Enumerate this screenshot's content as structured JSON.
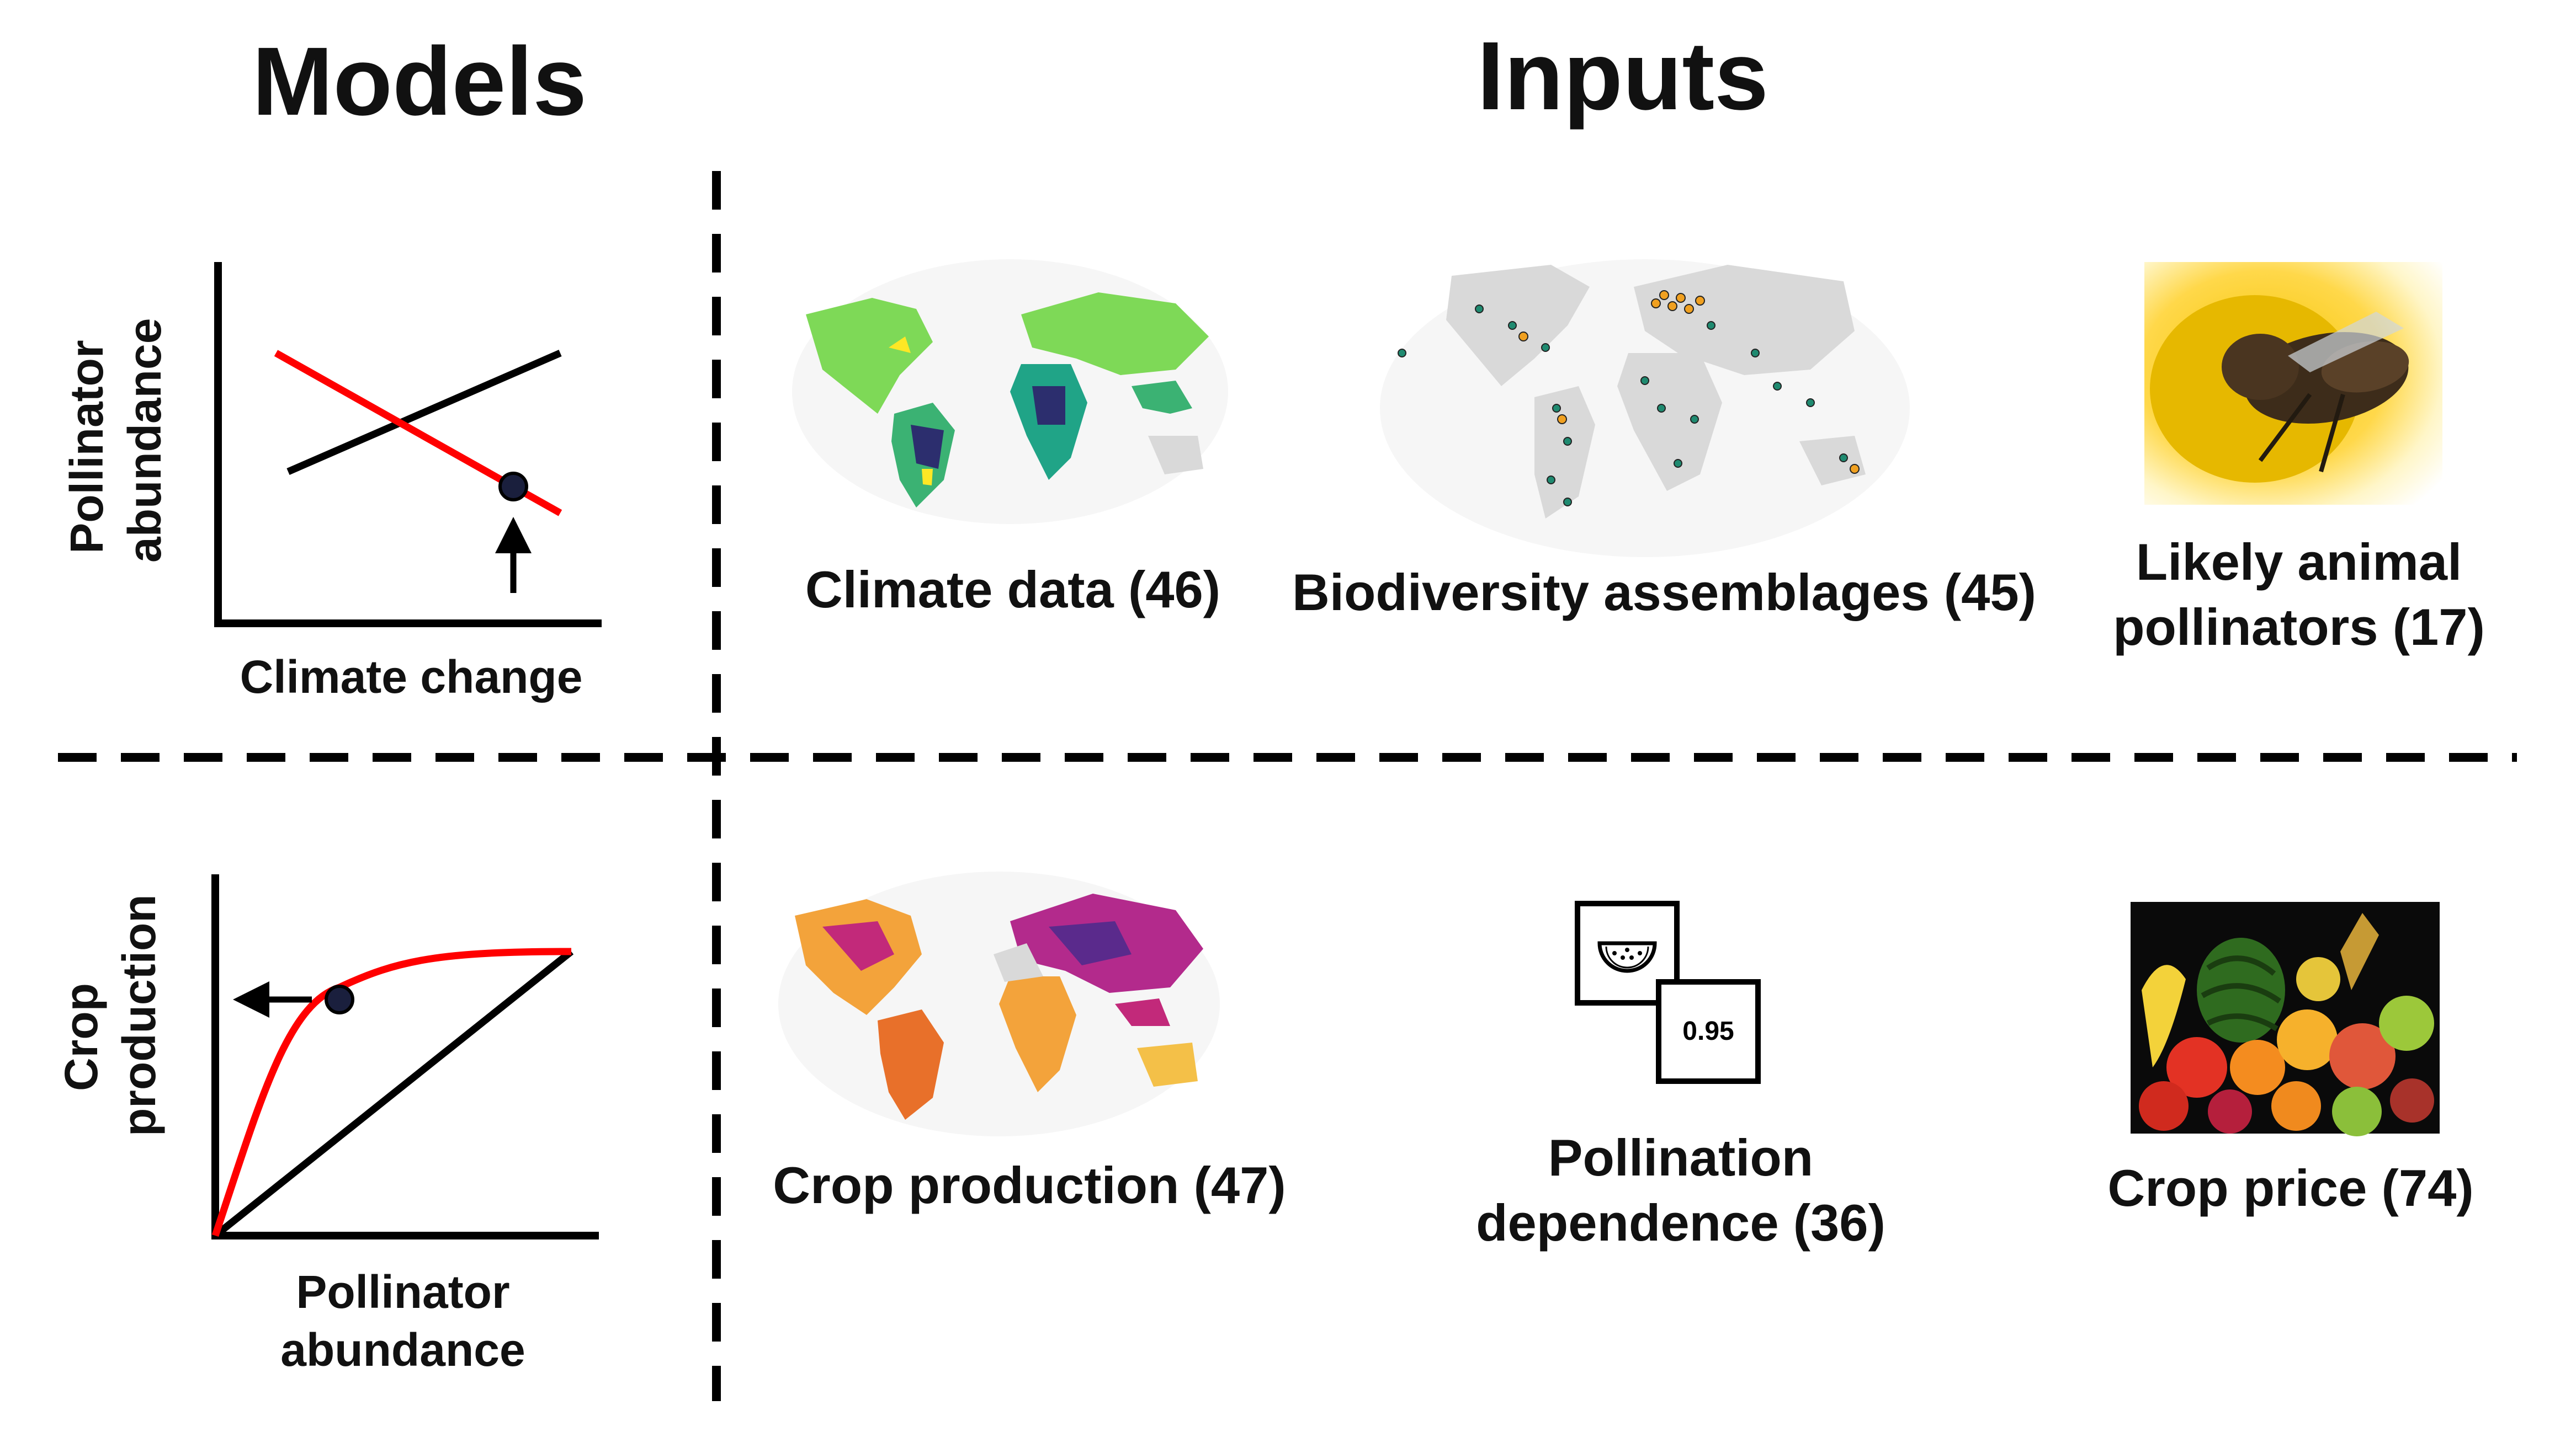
{
  "headings": {
    "models": "Models",
    "inputs": "Inputs"
  },
  "model_climate": {
    "y_label": "Pollinator abundance",
    "x_label": "Climate change"
  },
  "model_crop": {
    "y_label": "Crop production",
    "x_label": "Pollinator abundance"
  },
  "inputs_top": [
    {
      "label": "Climate data (46)",
      "icon": "world-map-climate"
    },
    {
      "label": "Biodiversity assemblages (45)",
      "icon": "world-map-sites"
    },
    {
      "label": "Likely animal pollinators (17)",
      "icon": "bee-on-flower-photo"
    }
  ],
  "inputs_bottom": [
    {
      "label": "Crop production (47)",
      "icon": "world-map-crop"
    },
    {
      "label": "Pollination dependence (36)",
      "icon": "watermelon-card",
      "value": "0.95"
    },
    {
      "label": "Crop price (74)",
      "icon": "fruit-pile-photo"
    }
  ],
  "colors": {
    "red_line": "#ff0000",
    "black_line": "#000000",
    "map_land": "#d9d9d9"
  }
}
